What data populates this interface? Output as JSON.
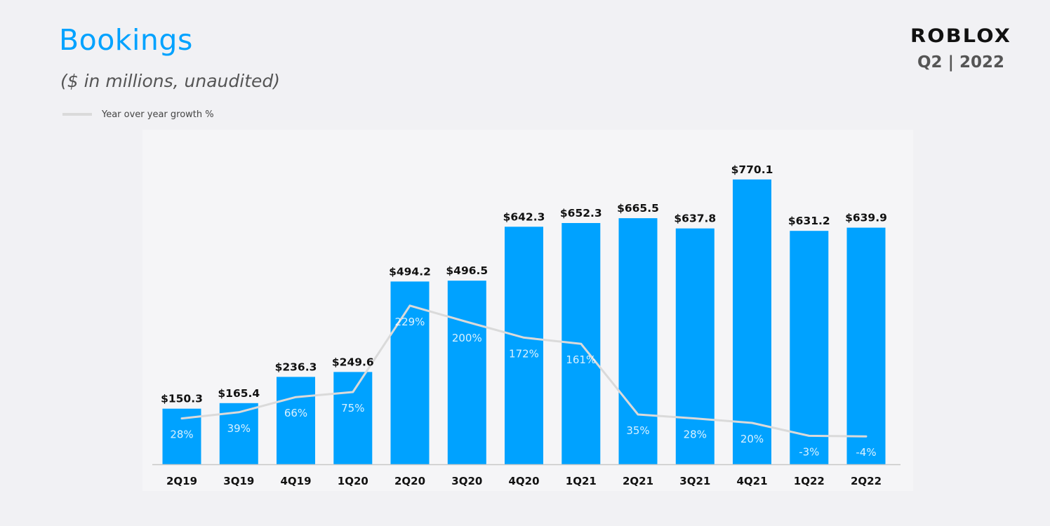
{
  "header": {
    "title": "Bookings",
    "subtitle": "($ in millions,  unaudited)",
    "legend_label": "Year over year growth %",
    "brand": "ROBLOX",
    "quarter": "Q2 | 2022"
  },
  "colors": {
    "bar": "#00a2ff",
    "growth_line": "#dadada",
    "title": "#00a2ff"
  },
  "chart_data": {
    "type": "bar",
    "title": "Bookings",
    "subtitle": "($ in millions,  unaudited)",
    "categories": [
      "2Q19",
      "3Q19",
      "4Q19",
      "1Q20",
      "2Q20",
      "3Q20",
      "4Q20",
      "1Q21",
      "2Q21",
      "3Q21",
      "4Q21",
      "1Q22",
      "2Q22"
    ],
    "series": [
      {
        "name": "",
        "type": "bar",
        "values": [
          150.3,
          165.4,
          236.3,
          249.6,
          494.2,
          496.5,
          642.3,
          652.3,
          665.5,
          637.8,
          770.1,
          631.2,
          639.9
        ],
        "labels": [
          "$150.3",
          "$165.4",
          "$236.3",
          "$249.6",
          "$494.2",
          "$496.5",
          "$642.3",
          "$652.3",
          "$665.5",
          "$637.8",
          "$770.1",
          "$631.2",
          "$639.9"
        ]
      },
      {
        "name": "Year over year growth %",
        "type": "line",
        "values": [
          28,
          39,
          66,
          75,
          229,
          200,
          172,
          161,
          35,
          28,
          20,
          -3,
          -4
        ],
        "labels": [
          "28%",
          "39%",
          "66%",
          "75%",
          "229%",
          "200%",
          "172%",
          "161%",
          "35%",
          "28%",
          "20%",
          "-3%",
          "-4%"
        ]
      }
    ],
    "xlabel": "",
    "ylabel": "",
    "ylim": [
      0,
      860
    ],
    "grid": false,
    "legend": "top-left"
  }
}
